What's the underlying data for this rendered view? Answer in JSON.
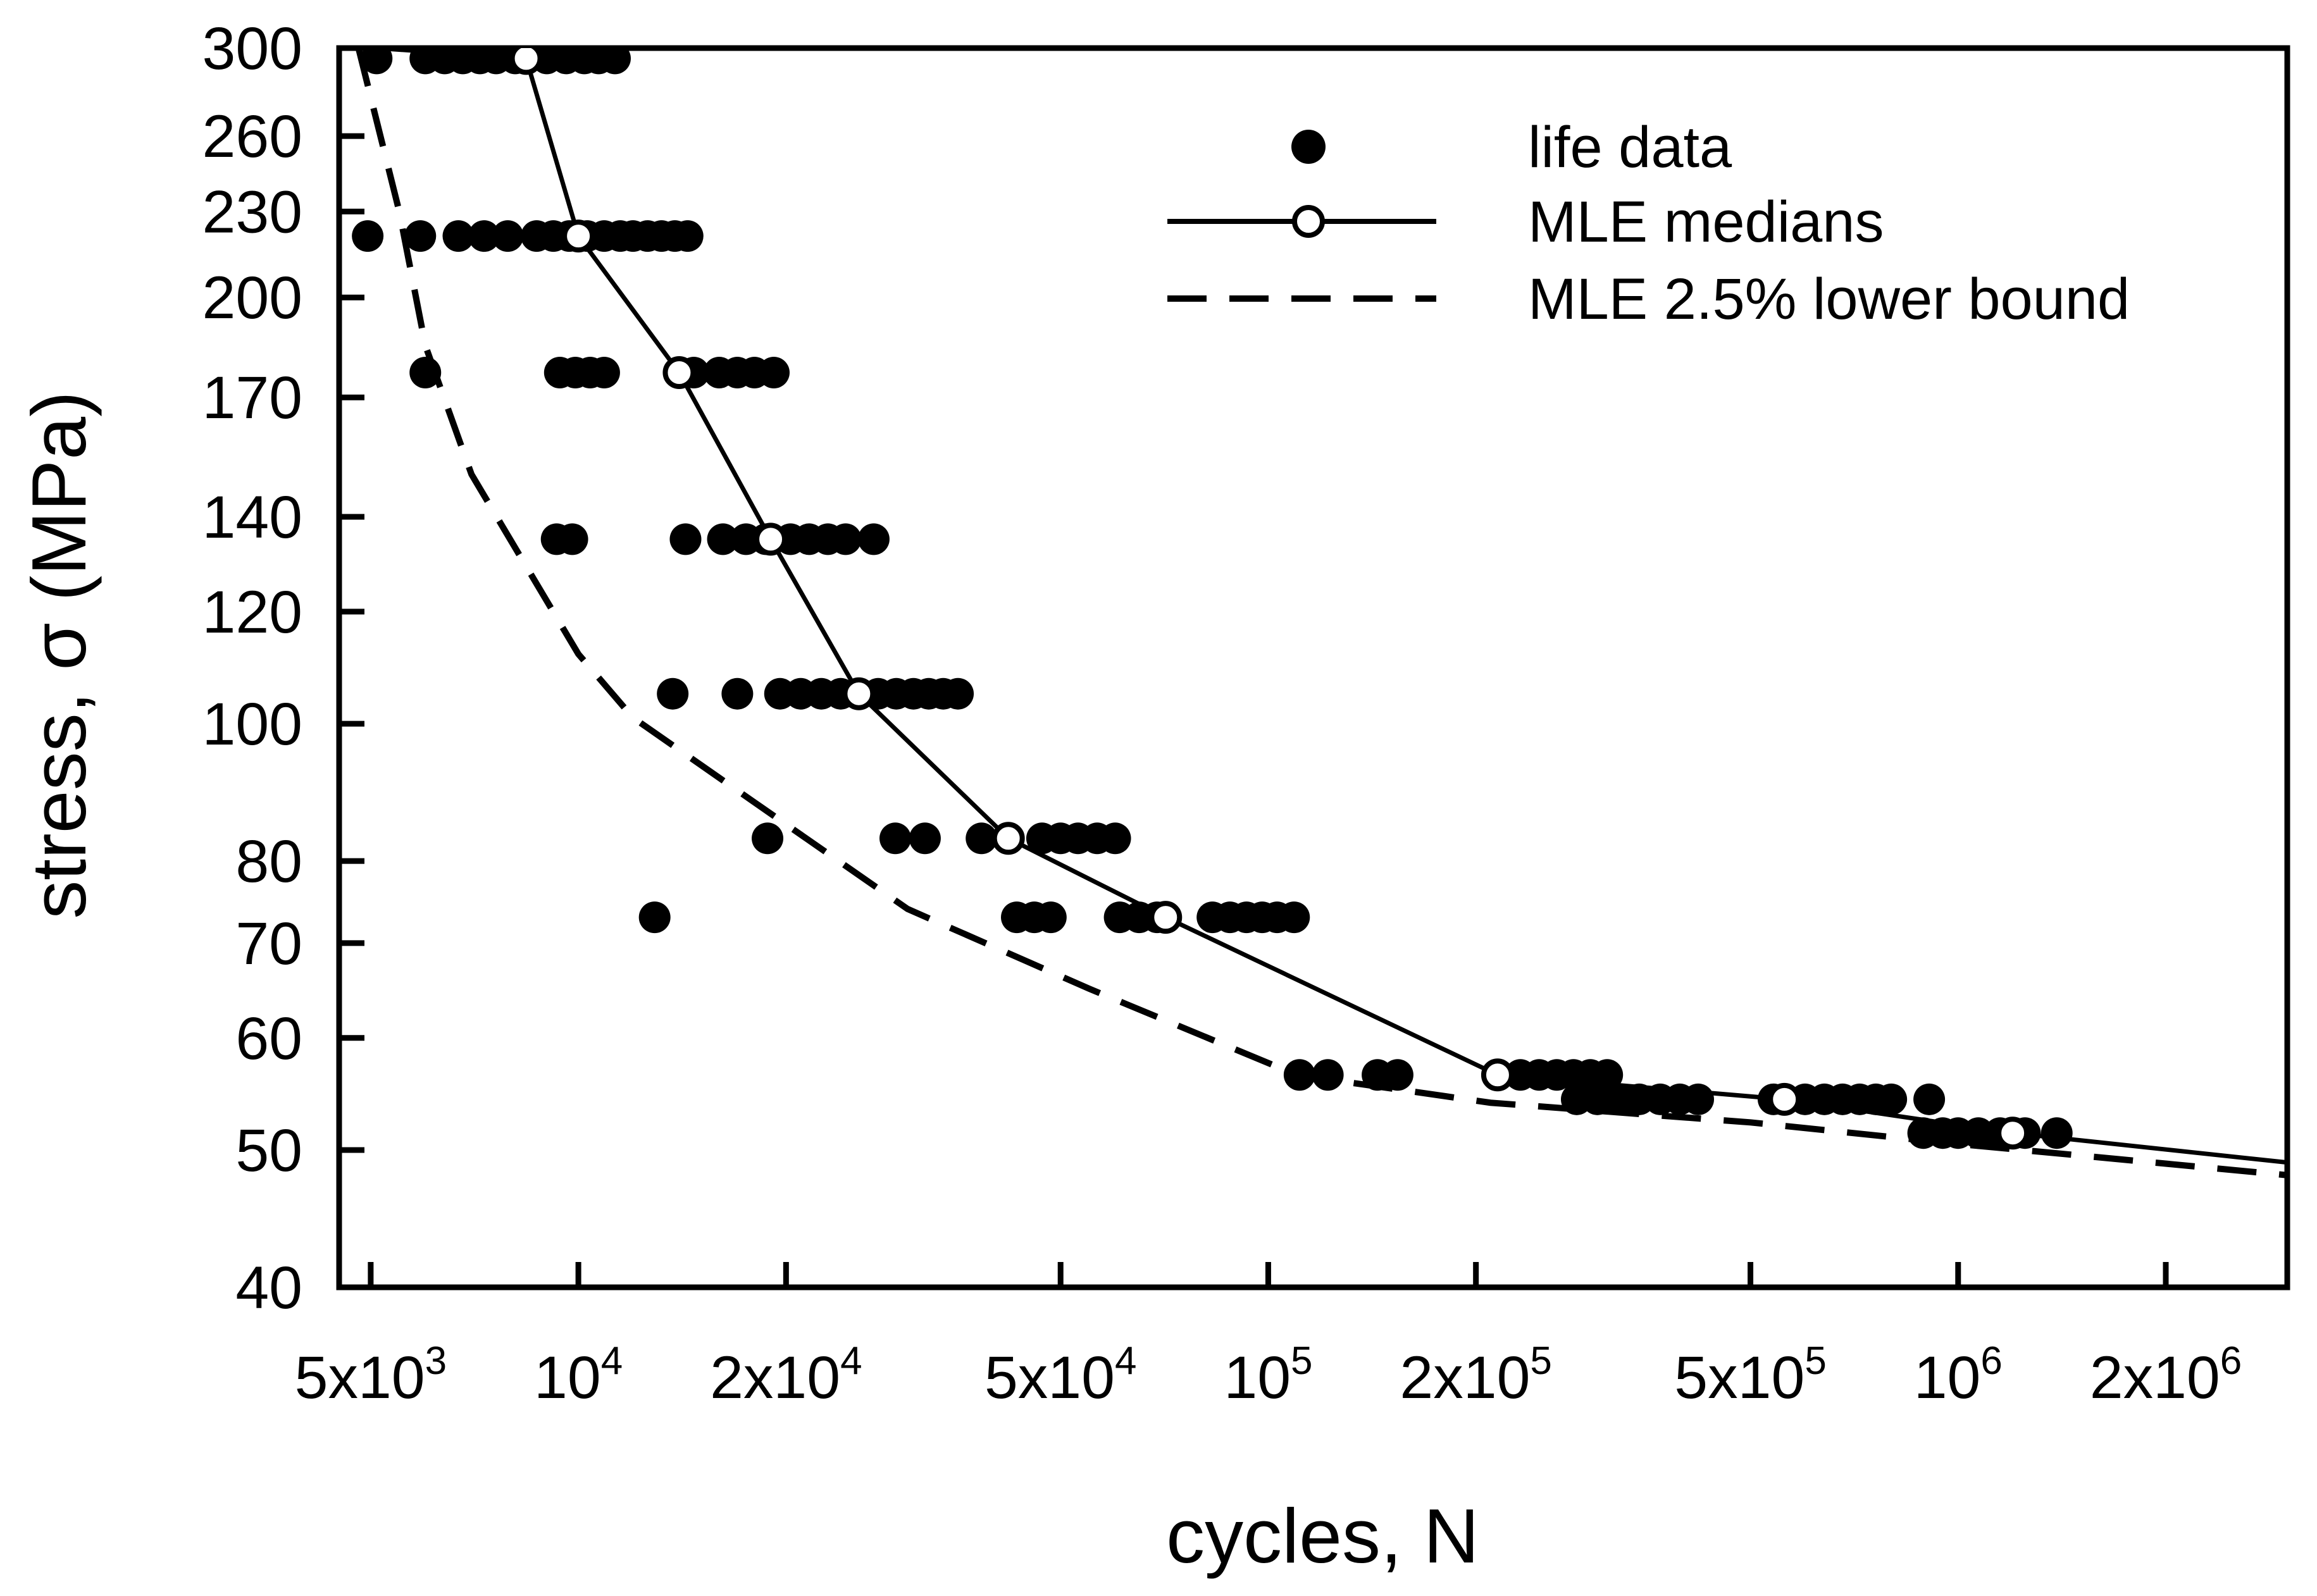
{
  "chart_data": {
    "type": "scatter",
    "xscale": "log",
    "yscale": "log",
    "xlim": [
      4500,
      3000000
    ],
    "ylim": [
      40,
      300
    ],
    "xlabel": "cycles, N",
    "ylabel": "stress, σ (MPa)",
    "xticks": [
      {
        "value": 5000,
        "base": "5x10",
        "exp": "3"
      },
      {
        "value": 10000,
        "base": "10",
        "exp": "4"
      },
      {
        "value": 20000,
        "base": "2x10",
        "exp": "4"
      },
      {
        "value": 50000,
        "base": "5x10",
        "exp": "4"
      },
      {
        "value": 100000,
        "base": "10",
        "exp": "5"
      },
      {
        "value": 200000,
        "base": "2x10",
        "exp": "5"
      },
      {
        "value": 500000,
        "base": "5x10",
        "exp": "5"
      },
      {
        "value": 1000000,
        "base": "10",
        "exp": "6"
      },
      {
        "value": 2000000,
        "base": "2x10",
        "exp": "6"
      }
    ],
    "yticks": [
      {
        "value": 300,
        "label": "300"
      },
      {
        "value": 260,
        "label": "260"
      },
      {
        "value": 230,
        "label": "230"
      },
      {
        "value": 200,
        "label": "200"
      },
      {
        "value": 170,
        "label": "170"
      },
      {
        "value": 140,
        "label": "140"
      },
      {
        "value": 120,
        "label": "120"
      },
      {
        "value": 100,
        "label": "100"
      },
      {
        "value": 80,
        "label": "80"
      },
      {
        "value": 70,
        "label": "70"
      },
      {
        "value": 60,
        "label": "60"
      },
      {
        "value": 50,
        "label": "50"
      },
      {
        "value": 40,
        "label": "40"
      }
    ],
    "legend_position": "top-right",
    "series": [
      {
        "name": "life data",
        "style": "filled-circle",
        "points": [
          [
            5100,
            295
          ],
          [
            6000,
            295
          ],
          [
            6400,
            295
          ],
          [
            6800,
            295
          ],
          [
            7200,
            295
          ],
          [
            7600,
            295
          ],
          [
            8100,
            295
          ],
          [
            9000,
            295
          ],
          [
            9600,
            295
          ],
          [
            10200,
            295
          ],
          [
            10700,
            295
          ],
          [
            11300,
            295
          ],
          [
            4950,
            221
          ],
          [
            5900,
            221
          ],
          [
            6700,
            221
          ],
          [
            7300,
            221
          ],
          [
            7900,
            221
          ],
          [
            8700,
            221
          ],
          [
            9200,
            221
          ],
          [
            9700,
            221
          ],
          [
            10300,
            221
          ],
          [
            10900,
            221
          ],
          [
            11500,
            221
          ],
          [
            12000,
            221
          ],
          [
            12600,
            221
          ],
          [
            13200,
            221
          ],
          [
            13800,
            221
          ],
          [
            14400,
            221
          ],
          [
            6000,
            177
          ],
          [
            9400,
            177
          ],
          [
            9900,
            177
          ],
          [
            10400,
            177
          ],
          [
            10900,
            177
          ],
          [
            14700,
            177
          ],
          [
            16000,
            177
          ],
          [
            17000,
            177
          ],
          [
            18000,
            177
          ],
          [
            19200,
            177
          ],
          [
            9300,
            135
          ],
          [
            9800,
            135
          ],
          [
            14300,
            135
          ],
          [
            16200,
            135
          ],
          [
            17500,
            135
          ],
          [
            18700,
            135
          ],
          [
            20300,
            135
          ],
          [
            21600,
            135
          ],
          [
            23000,
            135
          ],
          [
            24400,
            135
          ],
          [
            26800,
            135
          ],
          [
            13700,
            105
          ],
          [
            17000,
            105
          ],
          [
            19600,
            105
          ],
          [
            21000,
            105
          ],
          [
            22500,
            105
          ],
          [
            24000,
            105
          ],
          [
            25600,
            105
          ],
          [
            27200,
            105
          ],
          [
            28900,
            105
          ],
          [
            30600,
            105
          ],
          [
            32200,
            105
          ],
          [
            33800,
            105
          ],
          [
            35500,
            105
          ],
          [
            18800,
            83
          ],
          [
            28800,
            83
          ],
          [
            31800,
            83
          ],
          [
            38400,
            83
          ],
          [
            47000,
            83
          ],
          [
            50000,
            83
          ],
          [
            53000,
            83
          ],
          [
            56500,
            83
          ],
          [
            60000,
            83
          ],
          [
            12900,
            73
          ],
          [
            43200,
            73
          ],
          [
            45800,
            73
          ],
          [
            48400,
            73
          ],
          [
            60900,
            73
          ],
          [
            65000,
            73
          ],
          [
            69000,
            73
          ],
          [
            83000,
            73
          ],
          [
            88000,
            73
          ],
          [
            93000,
            73
          ],
          [
            98000,
            73
          ],
          [
            103000,
            73
          ],
          [
            109000,
            73
          ],
          [
            111000,
            56.5
          ],
          [
            122000,
            56.5
          ],
          [
            144000,
            56.5
          ],
          [
            154000,
            56.5
          ],
          [
            215000,
            56.5
          ],
          [
            232000,
            56.5
          ],
          [
            247000,
            56.5
          ],
          [
            262000,
            56.5
          ],
          [
            277000,
            56.5
          ],
          [
            293000,
            56.5
          ],
          [
            310000,
            56.5
          ],
          [
            280000,
            54.3
          ],
          [
            300000,
            54.3
          ],
          [
            320000,
            54.3
          ],
          [
            345000,
            54.3
          ],
          [
            370000,
            54.3
          ],
          [
            395000,
            54.3
          ],
          [
            420000,
            54.3
          ],
          [
            540000,
            54.3
          ],
          [
            600000,
            54.3
          ],
          [
            640000,
            54.3
          ],
          [
            680000,
            54.3
          ],
          [
            720000,
            54.3
          ],
          [
            760000,
            54.3
          ],
          [
            800000,
            54.3
          ],
          [
            908000,
            54.3
          ],
          [
            890000,
            51.4
          ],
          [
            950000,
            51.4
          ],
          [
            1000000,
            51.4
          ],
          [
            1070000,
            51.4
          ],
          [
            1150000,
            51.4
          ],
          [
            1250000,
            51.4
          ],
          [
            1390000,
            51.4
          ]
        ]
      },
      {
        "name": "MLE medians",
        "style": "solid-line-open-circle",
        "x": [
          5100,
          8400,
          10000,
          14000,
          19000,
          25500,
          42000,
          71000,
          215000,
          560000,
          1200000,
          3000000
        ],
        "y": [
          300,
          295,
          221,
          177,
          135,
          105,
          83,
          73,
          56.5,
          54.3,
          51.4,
          49
        ],
        "markers": [
          false,
          true,
          true,
          true,
          true,
          true,
          true,
          true,
          true,
          true,
          true,
          false
        ]
      },
      {
        "name": "MLE 2.5% lower bound",
        "style": "dashed-line",
        "x": [
          4800,
          5500,
          6000,
          7000,
          10000,
          12000,
          18000,
          30000,
          55000,
          110000,
          210000,
          500000,
          1000000,
          3000000
        ],
        "y": [
          300,
          230,
          185,
          150,
          112,
          101,
          88,
          74,
          65,
          56.5,
          54,
          52.3,
          50.5,
          48
        ]
      }
    ]
  }
}
